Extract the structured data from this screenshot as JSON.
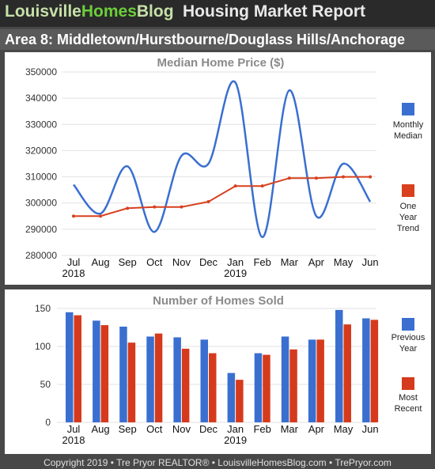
{
  "header": {
    "logo_white_1": "Louisville",
    "logo_green": "Homes",
    "logo_white_2": "Blog",
    "title": "Housing Market Report"
  },
  "area_title": "Area 8: Middletown/Hurstbourne/Douglass Hills/Anchorage",
  "footer": "Copyright 2019 • Tre Pryor REALTOR® • LouisvilleHomesBlog.com • TrePryor.com",
  "colors": {
    "blue": "#3a6fd0",
    "red": "#d8401e",
    "bar_red": "#d63a1c",
    "grid": "#e4e4e4"
  },
  "chart_data": [
    {
      "type": "line",
      "title": "Median Home Price ($)",
      "categories": [
        "Jul",
        "Aug",
        "Sep",
        "Oct",
        "Nov",
        "Dec",
        "Jan",
        "Feb",
        "Mar",
        "Apr",
        "May",
        "Jun"
      ],
      "year_labels": [
        "2018",
        "",
        "",
        "",
        "",
        "",
        "2019",
        "",
        "",
        "",
        "",
        ""
      ],
      "ylim": [
        280000,
        350000
      ],
      "yticks": [
        280000,
        290000,
        300000,
        310000,
        320000,
        330000,
        340000,
        350000
      ],
      "grid": true,
      "legend_position": "right",
      "series": [
        {
          "name": "Monthly Median",
          "legend_lines": [
            "Monthly",
            "Median"
          ],
          "color": "#3a6fd0",
          "smooth": true,
          "markers": false,
          "values": [
            307000,
            296000,
            314000,
            289000,
            318000,
            315000,
            346000,
            287000,
            343000,
            295000,
            315000,
            300500
          ]
        },
        {
          "name": "One Year Trend",
          "legend_lines": [
            "One",
            "Year",
            "Trend"
          ],
          "color": "#d8401e",
          "smooth": false,
          "markers": true,
          "values": [
            295000,
            295000,
            298000,
            298500,
            298500,
            300500,
            306500,
            306500,
            309500,
            309500,
            310000,
            310000
          ]
        }
      ]
    },
    {
      "type": "bar",
      "title": "Number of Homes Sold",
      "categories": [
        "Jul",
        "Aug",
        "Sep",
        "Oct",
        "Nov",
        "Dec",
        "Jan",
        "Feb",
        "Mar",
        "Apr",
        "May",
        "Jun"
      ],
      "year_labels": [
        "2018",
        "",
        "",
        "",
        "",
        "",
        "2019",
        "",
        "",
        "",
        "",
        ""
      ],
      "ylim": [
        0,
        150
      ],
      "yticks": [
        0,
        50,
        100,
        150
      ],
      "grid": true,
      "legend_position": "right",
      "series": [
        {
          "name": "Previous Year",
          "legend_lines": [
            "Previous",
            "Year"
          ],
          "color": "#3a6fd0",
          "values": [
            145,
            134,
            126,
            113,
            112,
            109,
            65,
            91,
            113,
            109,
            148,
            137
          ]
        },
        {
          "name": "Most Recent",
          "legend_lines": [
            "Most",
            "Recent"
          ],
          "color": "#d63a1c",
          "values": [
            141,
            128,
            105,
            117,
            97,
            91,
            56,
            89,
            96,
            109,
            129,
            135
          ]
        }
      ]
    }
  ]
}
